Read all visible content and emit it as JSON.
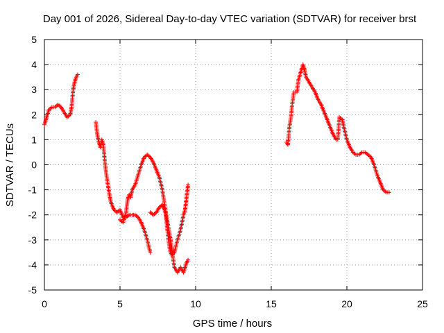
{
  "chart_data": {
    "type": "scatter",
    "title": "Day 001 of 2026, Sidereal Day-to-day VTEC variation (SDTVAR) for receiver brst",
    "xlabel": "GPS time / hours",
    "ylabel": "SDTVAR / TECUs",
    "xlim": [
      0,
      25
    ],
    "ylim": [
      -5,
      5
    ],
    "xticks": [
      0,
      5,
      10,
      15,
      20,
      25
    ],
    "yticks": [
      -5,
      -4,
      -3,
      -2,
      -1,
      0,
      1,
      2,
      3,
      4,
      5
    ],
    "grid": true,
    "marker": "+",
    "color": "#ff0000",
    "series": [
      {
        "name": "SDTVAR",
        "segments": [
          [
            [
              0.0,
              1.6
            ],
            [
              0.15,
              1.9
            ],
            [
              0.3,
              2.2
            ],
            [
              0.5,
              2.3
            ],
            [
              0.7,
              2.3
            ],
            [
              0.9,
              2.4
            ],
            [
              1.1,
              2.3
            ],
            [
              1.3,
              2.1
            ],
            [
              1.5,
              1.9
            ],
            [
              1.7,
              2.0
            ],
            [
              1.8,
              2.3
            ],
            [
              1.9,
              3.0
            ],
            [
              2.0,
              3.3
            ],
            [
              2.1,
              3.5
            ],
            [
              2.2,
              3.6
            ]
          ],
          [
            [
              3.4,
              1.7
            ],
            [
              3.5,
              1.2
            ],
            [
              3.6,
              0.9
            ],
            [
              3.7,
              0.7
            ],
            [
              3.8,
              1.0
            ],
            [
              3.9,
              0.8
            ],
            [
              4.0,
              0.1
            ],
            [
              4.1,
              -0.4
            ],
            [
              4.2,
              -0.8
            ],
            [
              4.3,
              -1.2
            ],
            [
              4.4,
              -1.5
            ],
            [
              4.6,
              -1.8
            ],
            [
              4.8,
              -1.9
            ],
            [
              5.0,
              -1.8
            ],
            [
              5.2,
              -2.1
            ],
            [
              5.4,
              -2.1
            ],
            [
              5.6,
              -2.0
            ],
            [
              5.8,
              -2.0
            ],
            [
              6.0,
              -2.0
            ],
            [
              6.2,
              -2.1
            ],
            [
              6.4,
              -2.3
            ],
            [
              6.6,
              -2.6
            ],
            [
              6.8,
              -3.0
            ],
            [
              7.0,
              -3.5
            ]
          ],
          [
            [
              5.0,
              -2.2
            ],
            [
              5.2,
              -2.3
            ],
            [
              5.4,
              -1.9
            ],
            [
              5.5,
              -1.4
            ],
            [
              5.6,
              -1.2
            ],
            [
              5.7,
              -1.3
            ],
            [
              5.8,
              -1.0
            ],
            [
              6.0,
              -0.8
            ],
            [
              6.2,
              -0.4
            ],
            [
              6.4,
              0.0
            ],
            [
              6.6,
              0.3
            ],
            [
              6.8,
              0.4
            ],
            [
              7.0,
              0.3
            ],
            [
              7.2,
              0.1
            ],
            [
              7.4,
              -0.2
            ],
            [
              7.6,
              -0.5
            ],
            [
              7.8,
              -1.0
            ],
            [
              8.0,
              -1.8
            ],
            [
              8.2,
              -2.5
            ],
            [
              8.4,
              -3.2
            ],
            [
              8.5,
              -3.7
            ],
            [
              8.6,
              -4.1
            ],
            [
              8.8,
              -4.3
            ],
            [
              9.0,
              -4.1
            ],
            [
              9.2,
              -4.3
            ],
            [
              9.3,
              -4.1
            ],
            [
              9.4,
              -3.9
            ],
            [
              9.5,
              -3.8
            ]
          ],
          [
            [
              7.0,
              -1.9
            ],
            [
              7.2,
              -2.0
            ],
            [
              7.4,
              -1.9
            ],
            [
              7.6,
              -1.7
            ],
            [
              7.8,
              -1.6
            ],
            [
              8.0,
              -1.9
            ],
            [
              8.1,
              -2.4
            ],
            [
              8.2,
              -3.0
            ],
            [
              8.3,
              -3.4
            ],
            [
              8.4,
              -3.6
            ],
            [
              8.6,
              -3.5
            ],
            [
              8.8,
              -3.0
            ],
            [
              9.0,
              -2.6
            ],
            [
              9.2,
              -2.0
            ],
            [
              9.3,
              -1.8
            ],
            [
              9.4,
              -1.3
            ],
            [
              9.5,
              -0.8
            ]
          ],
          [
            [
              16.0,
              0.9
            ],
            [
              16.1,
              0.8
            ],
            [
              16.2,
              1.5
            ],
            [
              16.3,
              1.9
            ],
            [
              16.4,
              2.5
            ],
            [
              16.5,
              2.9
            ],
            [
              16.7,
              2.9
            ],
            [
              16.8,
              3.4
            ],
            [
              17.0,
              3.8
            ],
            [
              17.1,
              4.0
            ],
            [
              17.2,
              3.8
            ],
            [
              17.3,
              3.5
            ],
            [
              17.5,
              3.3
            ],
            [
              17.7,
              3.1
            ],
            [
              17.9,
              2.9
            ],
            [
              18.1,
              2.6
            ],
            [
              18.3,
              2.4
            ],
            [
              18.5,
              2.1
            ],
            [
              18.7,
              1.8
            ],
            [
              18.9,
              1.5
            ],
            [
              19.1,
              1.2
            ],
            [
              19.3,
              1.0
            ],
            [
              19.4,
              1.0
            ],
            [
              19.5,
              1.9
            ],
            [
              19.7,
              1.8
            ],
            [
              19.8,
              1.5
            ],
            [
              20.0,
              1.0
            ],
            [
              20.2,
              0.7
            ],
            [
              20.4,
              0.5
            ],
            [
              20.6,
              0.4
            ],
            [
              20.8,
              0.4
            ],
            [
              21.0,
              0.5
            ],
            [
              21.2,
              0.5
            ],
            [
              21.4,
              0.4
            ],
            [
              21.6,
              0.3
            ],
            [
              21.8,
              0.0
            ],
            [
              22.0,
              -0.4
            ],
            [
              22.2,
              -0.7
            ],
            [
              22.4,
              -1.0
            ],
            [
              22.6,
              -1.1
            ],
            [
              22.8,
              -1.1
            ]
          ]
        ]
      }
    ]
  }
}
